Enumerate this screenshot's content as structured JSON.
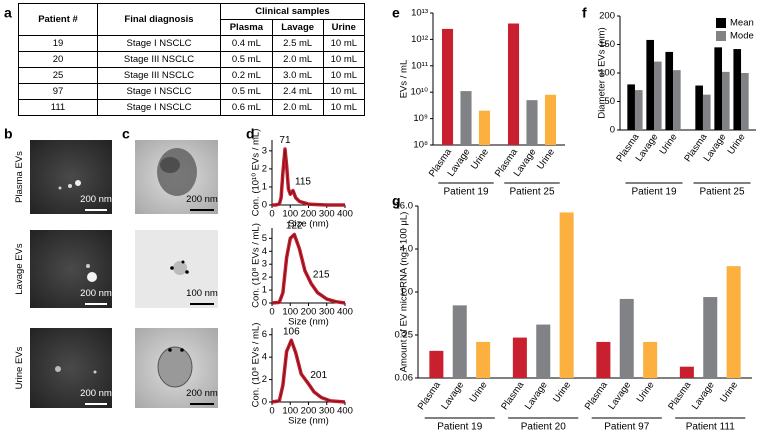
{
  "panel_labels": [
    "a",
    "b",
    "c",
    "d",
    "e",
    "f",
    "g"
  ],
  "table": {
    "header": [
      "Patient #",
      "Final diagnosis",
      "Clinical samples"
    ],
    "subheader": [
      "Plasma",
      "Lavage",
      "Urine"
    ],
    "rows": [
      [
        19,
        "Stage I NSCLC",
        "0.4 mL",
        "2.5 mL",
        "10 mL"
      ],
      [
        20,
        "Stage III NSCLC",
        "0.5 mL",
        "2.0 mL",
        "10 mL"
      ],
      [
        25,
        "Stage III NSCLC",
        "0.2 mL",
        "3.0 mL",
        "10 mL"
      ],
      [
        97,
        "Stage I NSCLC",
        "0.5 mL",
        "2.4 mL",
        "10 mL"
      ],
      [
        111,
        "Stage I NSCLC",
        "0.6 mL",
        "2.0 mL",
        "10 mL"
      ]
    ]
  },
  "images": {
    "b": {
      "labels": [
        "Plasma EVs",
        "Lavage EVs",
        "Urine EVs"
      ],
      "scale_bars": [
        "200 nm",
        "200 nm",
        "200 nm"
      ]
    },
    "c": {
      "scale_bars": [
        "200 nm",
        "100 nm",
        "200 nm"
      ]
    }
  },
  "chart_data": [
    {
      "type": "line",
      "ylabel": "Con. (10¹⁰ EVs / mL)",
      "xlabel": "Size (nm)",
      "color": "#c8202f",
      "x": [
        0,
        20,
        40,
        50,
        60,
        71,
        80,
        90,
        100,
        115,
        130,
        150,
        200,
        250,
        300,
        400
      ],
      "values": [
        0,
        0,
        0.05,
        0.4,
        1.8,
        3.1,
        2.2,
        0.9,
        0.6,
        0.8,
        0.4,
        0.2,
        0.05,
        0.02,
        0,
        0
      ],
      "xlim": [
        0,
        400
      ],
      "xticks": [
        0,
        100,
        200,
        300,
        400
      ],
      "ylim": [
        0,
        3.6
      ],
      "yticks": [
        0,
        1,
        2,
        3
      ],
      "peaks": [
        {
          "x": 71,
          "y": 3.1
        },
        {
          "x": 115,
          "y": 0.8
        }
      ]
    },
    {
      "type": "line",
      "ylabel": "Con. (10⁸ EVs / mL)",
      "xlabel": "Size (nm)",
      "color": "#c8202f",
      "x": [
        0,
        40,
        60,
        80,
        100,
        122,
        150,
        180,
        215,
        250,
        300,
        350,
        400
      ],
      "values": [
        0,
        0.05,
        0.8,
        3.5,
        5.0,
        5.3,
        4.2,
        2.5,
        1.5,
        0.8,
        0.3,
        0.1,
        0
      ],
      "xlim": [
        0,
        400
      ],
      "xticks": [
        0,
        100,
        200,
        300,
        400
      ],
      "ylim": [
        0,
        5.8
      ],
      "yticks": [
        0,
        1,
        2,
        3,
        4,
        5
      ],
      "peaks": [
        {
          "x": 122,
          "y": 5.3
        },
        {
          "x": 215,
          "y": 1.5
        }
      ]
    },
    {
      "type": "line",
      "ylabel": "Con. (10⁸ EVs / mL)",
      "xlabel": "Size (nm)",
      "color": "#c8202f",
      "x": [
        0,
        40,
        60,
        80,
        106,
        130,
        160,
        201,
        230,
        270,
        320,
        400
      ],
      "values": [
        0,
        0.1,
        1.5,
        4.5,
        5.5,
        4.4,
        2.5,
        1.6,
        0.9,
        0.4,
        0.1,
        0
      ],
      "xlim": [
        0,
        400
      ],
      "xticks": [
        0,
        100,
        200,
        300,
        400
      ],
      "ylim": [
        0,
        6.6
      ],
      "yticks": [
        0,
        2,
        4,
        6
      ],
      "peaks": [
        {
          "x": 106,
          "y": 5.5
        },
        {
          "x": 201,
          "y": 1.6
        }
      ]
    },
    {
      "type": "grouped_bar",
      "ylabel": "EVs / mL",
      "yscale": "log",
      "ylim": [
        100000000,
        10000000000000
      ],
      "yticks": [
        {
          "value": 100000000,
          "label": "10⁸"
        },
        {
          "value": 1000000000,
          "label": "10⁹"
        },
        {
          "value": 10000000000,
          "label": "10¹⁰"
        },
        {
          "value": 100000000000,
          "label": "10¹¹"
        },
        {
          "value": 1000000000000,
          "label": "10¹²"
        },
        {
          "value": 10000000000000,
          "label": "10¹³"
        }
      ],
      "categories": [
        "Patient 19",
        "Patient 25"
      ],
      "series": [
        {
          "name": "Plasma",
          "color": "#c8202f",
          "values": [
            2500000000000,
            4000000000000
          ]
        },
        {
          "name": "Lavage",
          "color": "#808285",
          "values": [
            11000000000,
            5000000000
          ]
        },
        {
          "name": "Urine",
          "color": "#fbb040",
          "values": [
            2000000000,
            8000000000
          ]
        }
      ]
    },
    {
      "type": "grouped_bar",
      "ylabel": "Diameter of EVs (nm)",
      "ylim": [
        0,
        200
      ],
      "yticks": [
        0,
        50,
        100,
        150,
        200
      ],
      "categories": [
        "Patient 19",
        "Patient 25"
      ],
      "subcategories": [
        "Plasma",
        "Lavage",
        "Urine"
      ],
      "series": [
        {
          "name": "Mean",
          "color": "#000000",
          "values": [
            [
              80,
              158,
              137
            ],
            [
              78,
              145,
              142
            ]
          ]
        },
        {
          "name": "Mode",
          "color": "#808285",
          "values": [
            [
              70,
              120,
              105
            ],
            [
              62,
              102,
              100
            ]
          ]
        }
      ],
      "legend": "upper right"
    },
    {
      "type": "grouped_bar",
      "ylabel": "Amount of EV microRNA (ng / 100 μL)",
      "yscale": "log",
      "ylim": [
        0.0625,
        16
      ],
      "yticks": [
        {
          "value": 0.0625,
          "label": "0.06"
        },
        0.25,
        {
          "value": 1,
          "label": "1.0"
        },
        {
          "value": 4,
          "label": "4.0"
        },
        {
          "value": 16,
          "label": "16.0"
        }
      ],
      "categories": [
        "Patient 19",
        "Patient 20",
        "Patient 97",
        "Patient 111"
      ],
      "series": [
        {
          "name": "Plasma",
          "color": "#c8202f",
          "values": [
            0.15,
            0.23,
            0.2,
            0.09
          ]
        },
        {
          "name": "Lavage",
          "color": "#808285",
          "values": [
            0.65,
            0.35,
            0.8,
            0.85
          ]
        },
        {
          "name": "Urine",
          "color": "#fbb040",
          "values": [
            0.2,
            13,
            0.2,
            2.3
          ]
        }
      ]
    }
  ]
}
